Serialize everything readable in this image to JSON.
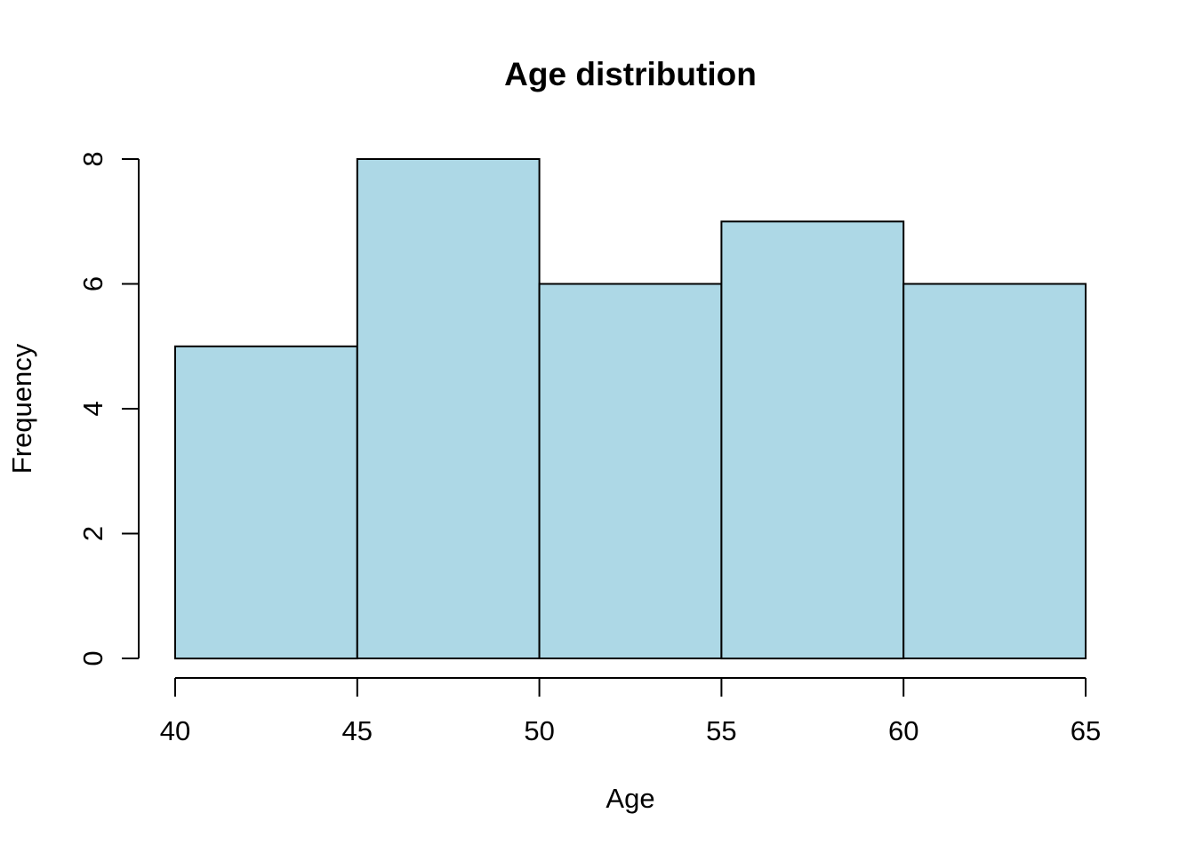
{
  "chart_data": {
    "type": "bar",
    "subtype": "histogram",
    "title": "Age distribution",
    "xlabel": "Age",
    "ylabel": "Frequency",
    "bin_edges": [
      40,
      45,
      50,
      55,
      60,
      65
    ],
    "counts": [
      5,
      8,
      6,
      7,
      6
    ],
    "x_ticks": [
      40,
      45,
      50,
      55,
      60,
      65
    ],
    "x_tick_labels": [
      "40",
      "45",
      "50",
      "55",
      "60",
      "65"
    ],
    "y_ticks": [
      0,
      2,
      4,
      6,
      8
    ],
    "y_tick_labels": [
      "0",
      "2",
      "4",
      "6",
      "8"
    ],
    "xlim": [
      40,
      65
    ],
    "ylim": [
      0,
      8
    ],
    "grid": false,
    "legend": "none",
    "colors": {
      "bar_fill": "#ADD8E6",
      "bar_stroke": "#000000",
      "axis": "#000000",
      "text": "#000000",
      "background": "#FFFFFF"
    }
  }
}
